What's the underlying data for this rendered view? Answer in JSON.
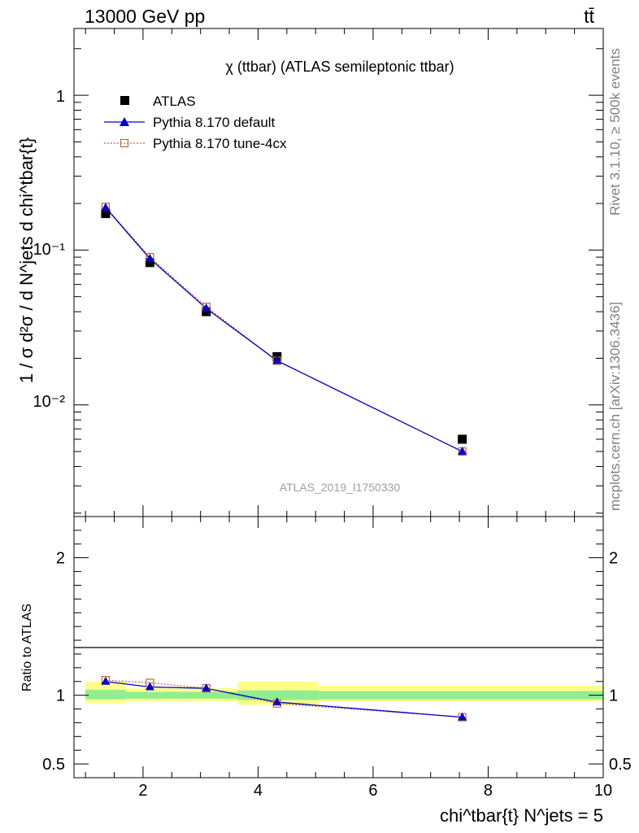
{
  "header": {
    "process": "13000 GeV pp",
    "final_state": "tt̄"
  },
  "side_text": {
    "rivet": "Rivet 3.1.10, ≥ 500k events",
    "source": "mcplots.cern.ch [arXiv:1306.3436]"
  },
  "chart_data": [
    {
      "type": "scatter",
      "title": "χ (ttbar) (ATLAS semileptonic ttbar)",
      "reference": "ATLAS_2019_I1750330",
      "ylabel": "1 / σ d²σ / d N^jets d chi^tbar{t}",
      "xlabel": "chi^tbar{t} N^jets = 5",
      "yscale": "log",
      "xlim": [
        0.8,
        10.0
      ],
      "ylim": [
        0.0019,
        2.7
      ],
      "y_tick_labels": [
        "10⁻²",
        "10⁻¹",
        "1"
      ],
      "legend_position": "top-left",
      "series": [
        {
          "name": "ATLAS",
          "x": [
            1.35,
            2.12,
            3.1,
            4.33,
            7.55
          ],
          "y": [
            0.172,
            0.083,
            0.04,
            0.0205,
            0.006
          ],
          "x_bins": [
            [
              1.0,
              1.7
            ],
            [
              1.7,
              2.55
            ],
            [
              2.55,
              3.65
            ],
            [
              3.65,
              5.05
            ],
            [
              5.05,
              10.0
            ]
          ],
          "color": "#000000",
          "marker": "square"
        },
        {
          "name": "Pythia 8.170 default",
          "x": [
            1.35,
            2.12,
            3.1,
            4.33,
            7.55
          ],
          "y": [
            0.188,
            0.088,
            0.042,
            0.0193,
            0.005
          ],
          "color": "#0000cc",
          "marker": "triangle"
        },
        {
          "name": "Pythia 8.170 tune-4cx",
          "x": [
            1.35,
            2.12,
            3.1,
            4.33,
            7.55
          ],
          "y": [
            0.19,
            0.09,
            0.043,
            0.0193,
            0.005
          ],
          "color": "#c86432",
          "marker": "open-square"
        }
      ]
    },
    {
      "type": "scatter",
      "ylabel": "Ratio to ATLAS",
      "xlim": [
        0.8,
        10.0
      ],
      "ylim": [
        0.4,
        2.3
      ],
      "x_ticks": [
        2,
        4,
        6,
        8,
        10
      ],
      "y_ticks": [
        0.5,
        1,
        2
      ],
      "bands": [
        {
          "x": [
            1.0,
            1.7
          ],
          "inner": [
            0.97,
            1.04
          ],
          "outer": [
            0.94,
            1.1
          ]
        },
        {
          "x": [
            1.7,
            3.65
          ],
          "inner": [
            0.975,
            1.025
          ],
          "outer": [
            0.955,
            1.05
          ]
        },
        {
          "x": [
            3.65,
            5.05
          ],
          "inner": [
            0.965,
            1.035
          ],
          "outer": [
            0.93,
            1.1
          ]
        },
        {
          "x": [
            5.05,
            10.0
          ],
          "inner": [
            0.97,
            1.03
          ],
          "outer": [
            0.955,
            1.07
          ]
        }
      ],
      "series": [
        {
          "name": "Pythia 8.170 default",
          "x": [
            1.35,
            2.12,
            3.1,
            4.33,
            7.55
          ],
          "y": [
            1.1,
            1.06,
            1.05,
            0.95,
            0.84
          ],
          "color": "#0000cc"
        },
        {
          "name": "Pythia 8.170 tune-4cx",
          "x": [
            1.35,
            2.12,
            3.1,
            4.33,
            7.55
          ],
          "y": [
            1.11,
            1.09,
            1.05,
            0.94,
            0.84
          ],
          "color": "#c86432"
        }
      ]
    }
  ]
}
